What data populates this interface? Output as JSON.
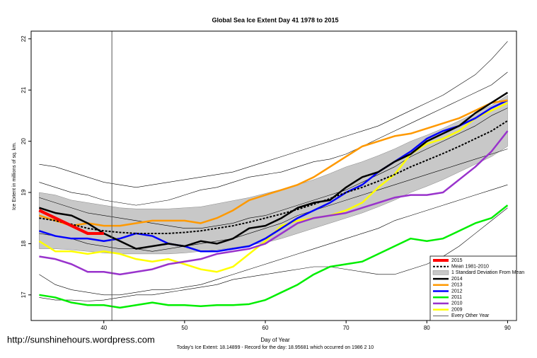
{
  "chart_data": {
    "type": "line",
    "title": "Global Sea Ice Extent Day 41 1978 to 2015",
    "x_label": "Day of Year",
    "y_label": "Ice Extent in millions of sq. km.",
    "footer": "Today's Ice Extent: 18.14899  - Record for the day: 18.95681 which occurred on 1986 2 10",
    "watermark": "http://sunshinehours.wordpress.com",
    "xlim": [
      31,
      91.1
    ],
    "ylim": [
      16.5,
      22.15
    ],
    "xticks": [
      40,
      50,
      60,
      70,
      80,
      90
    ],
    "yticks": [
      17,
      18,
      19,
      20,
      21,
      22
    ],
    "vline": 41,
    "legend_position": "bottom-right",
    "x": [
      32,
      34,
      36,
      38,
      40,
      42,
      44,
      46,
      48,
      50,
      52,
      54,
      56,
      58,
      60,
      62,
      64,
      66,
      68,
      70,
      72,
      74,
      76,
      78,
      80,
      82,
      84,
      86,
      88,
      90
    ],
    "band": {
      "name": "1 Standard Deviation From Mean",
      "color": "#c8c8c8",
      "upper": [
        19.0,
        18.95,
        18.85,
        18.8,
        18.75,
        18.7,
        18.68,
        18.68,
        18.68,
        18.7,
        18.72,
        18.78,
        18.84,
        18.9,
        18.98,
        19.06,
        19.15,
        19.25,
        19.37,
        19.5,
        19.6,
        19.72,
        19.85,
        20.0,
        20.12,
        20.25,
        20.4,
        20.55,
        20.7,
        20.9
      ],
      "lower": [
        17.9,
        17.9,
        17.88,
        17.85,
        17.82,
        17.8,
        17.8,
        17.8,
        17.8,
        17.82,
        17.85,
        17.88,
        17.92,
        17.97,
        18.02,
        18.1,
        18.2,
        18.3,
        18.4,
        18.5,
        18.6,
        18.72,
        18.85,
        19.0,
        19.12,
        19.25,
        19.4,
        19.55,
        19.7,
        19.9
      ]
    },
    "every_other_year": {
      "name": "Every Other Year",
      "color": "#000000",
      "lines": [
        [
          19.55,
          19.5,
          19.4,
          19.3,
          19.2,
          19.15,
          19.1,
          19.15,
          19.2,
          19.25,
          19.3,
          19.35,
          19.4,
          19.5,
          19.6,
          19.7,
          19.8,
          19.9,
          20.0,
          20.1,
          20.2,
          20.3,
          20.45,
          20.6,
          20.75,
          20.9,
          21.1,
          21.3,
          21.6,
          21.95
        ],
        [
          17.4,
          17.2,
          17.1,
          17.05,
          17.0,
          17.0,
          17.05,
          17.1,
          17.1,
          17.15,
          17.2,
          17.3,
          17.4,
          17.5,
          17.6,
          17.7,
          17.8,
          17.9,
          18.0,
          18.1,
          18.2,
          18.3,
          18.45,
          18.55,
          18.65,
          18.75,
          18.85,
          18.95,
          19.05,
          19.15
        ],
        [
          16.95,
          16.9,
          16.9,
          16.88,
          16.9,
          16.95,
          17.0,
          17.0,
          17.05,
          17.1,
          17.15,
          17.2,
          17.3,
          17.35,
          17.4,
          17.45,
          17.5,
          17.55,
          17.55,
          17.5,
          17.45,
          17.4,
          17.4,
          17.5,
          17.6,
          17.75,
          17.95,
          18.2,
          18.45,
          18.7
        ],
        [
          19.2,
          19.1,
          19.0,
          18.95,
          18.85,
          18.8,
          18.75,
          18.8,
          18.85,
          18.95,
          19.05,
          19.1,
          19.2,
          19.3,
          19.35,
          19.4,
          19.5,
          19.6,
          19.65,
          19.75,
          19.9,
          20.05,
          20.2,
          20.35,
          20.5,
          20.65,
          20.8,
          20.95,
          21.1,
          21.35
        ],
        [
          18.9,
          18.8,
          18.7,
          18.6,
          18.55,
          18.5,
          18.45,
          18.4,
          18.35,
          18.3,
          18.3,
          18.35,
          18.4,
          18.5,
          18.55,
          18.65,
          18.75,
          18.85,
          18.95,
          19.05,
          19.2,
          19.35,
          19.5,
          19.7,
          19.85,
          20.0,
          20.15,
          20.3,
          20.5,
          20.65
        ],
        [
          18.2,
          18.15,
          18.1,
          18.0,
          17.95,
          17.9,
          17.9,
          17.85,
          17.9,
          17.95,
          18.0,
          18.05,
          18.1,
          18.2,
          18.3,
          18.4,
          18.55,
          18.65,
          18.75,
          18.85,
          18.95,
          19.05,
          19.15,
          19.25,
          19.35,
          19.45,
          19.55,
          19.65,
          19.75,
          19.85
        ]
      ]
    },
    "mean": {
      "name": "Mean 1981-2010",
      "color": "#000000",
      "values": [
        18.5,
        18.45,
        18.38,
        18.3,
        18.25,
        18.22,
        18.2,
        18.2,
        18.2,
        18.22,
        18.25,
        18.3,
        18.35,
        18.42,
        18.5,
        18.58,
        18.67,
        18.77,
        18.88,
        19.0,
        19.1,
        19.22,
        19.35,
        19.5,
        19.63,
        19.76,
        19.9,
        20.05,
        20.2,
        20.4
      ]
    },
    "series": [
      {
        "name": "2015",
        "color": "#ff0000",
        "width": 4,
        "values": [
          18.65,
          18.5,
          18.35,
          18.2,
          18.2,
          null,
          null,
          null,
          null,
          null,
          null,
          null,
          null,
          null,
          null,
          null,
          null,
          null,
          null,
          null,
          null,
          null,
          null,
          null,
          null,
          null,
          null,
          null,
          null,
          null
        ]
      },
      {
        "name": "2014",
        "color": "#000000",
        "width": 2.5,
        "values": [
          18.7,
          18.6,
          18.55,
          18.4,
          18.2,
          18.05,
          17.9,
          17.95,
          18.0,
          17.95,
          18.05,
          18.0,
          18.1,
          18.3,
          18.35,
          18.5,
          18.7,
          18.8,
          18.85,
          19.1,
          19.3,
          19.4,
          19.6,
          19.75,
          20.0,
          20.15,
          20.3,
          20.55,
          20.75,
          20.95
        ]
      },
      {
        "name": "2013",
        "color": "#ff9900",
        "width": 2.5,
        "values": [
          18.55,
          18.45,
          18.35,
          18.4,
          18.35,
          18.35,
          18.4,
          18.45,
          18.45,
          18.45,
          18.4,
          18.5,
          18.65,
          18.85,
          18.95,
          19.05,
          19.15,
          19.3,
          19.5,
          19.7,
          19.9,
          20.0,
          20.1,
          20.15,
          20.25,
          20.35,
          20.45,
          20.6,
          20.75,
          20.8
        ]
      },
      {
        "name": "2012",
        "color": "#0000ff",
        "width": 2.5,
        "values": [
          18.25,
          18.15,
          18.1,
          18.1,
          18.05,
          18.1,
          18.2,
          18.15,
          18.0,
          17.95,
          17.85,
          17.85,
          17.9,
          17.95,
          18.1,
          18.3,
          18.5,
          18.65,
          18.8,
          19.0,
          19.15,
          19.4,
          19.6,
          19.8,
          20.05,
          20.2,
          20.3,
          20.45,
          20.65,
          20.8
        ]
      },
      {
        "name": "2011",
        "color": "#00ee00",
        "width": 2.5,
        "values": [
          17.0,
          16.95,
          16.85,
          16.8,
          16.8,
          16.75,
          16.8,
          16.85,
          16.8,
          16.8,
          16.78,
          16.8,
          16.8,
          16.82,
          16.9,
          17.05,
          17.2,
          17.4,
          17.55,
          17.6,
          17.65,
          17.8,
          17.95,
          18.1,
          18.05,
          18.1,
          18.25,
          18.4,
          18.5,
          18.75
        ]
      },
      {
        "name": "2010",
        "color": "#9933cc",
        "width": 2.5,
        "values": [
          17.75,
          17.7,
          17.6,
          17.45,
          17.45,
          17.4,
          17.45,
          17.5,
          17.6,
          17.65,
          17.7,
          17.8,
          17.85,
          17.9,
          18.0,
          18.2,
          18.4,
          18.5,
          18.55,
          18.6,
          18.7,
          18.8,
          18.9,
          18.95,
          18.95,
          19.0,
          19.25,
          19.5,
          19.8,
          20.2
        ]
      },
      {
        "name": "2009",
        "color": "#ffff00",
        "width": 2.5,
        "values": [
          18.05,
          17.85,
          17.85,
          17.8,
          17.85,
          17.8,
          17.7,
          17.65,
          17.7,
          17.6,
          17.5,
          17.45,
          17.55,
          17.8,
          18.05,
          18.35,
          18.45,
          18.5,
          18.55,
          18.65,
          18.8,
          19.1,
          19.35,
          19.75,
          19.95,
          20.05,
          20.2,
          20.45,
          20.6,
          20.75
        ]
      }
    ]
  }
}
